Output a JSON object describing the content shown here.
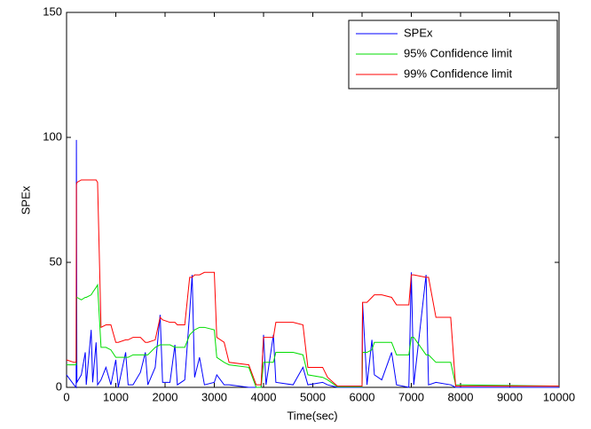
{
  "chart_data": {
    "type": "line",
    "xlabel": "Time(sec)",
    "ylabel": "SPEx",
    "x": [
      0,
      150,
      195,
      200,
      210,
      300,
      380,
      400,
      500,
      530,
      600,
      630,
      700,
      800,
      900,
      1000,
      1050,
      1200,
      1250,
      1350,
      1500,
      1600,
      1650,
      1800,
      1900,
      1950,
      2100,
      2200,
      2250,
      2400,
      2500,
      2550,
      2600,
      2700,
      2800,
      3000,
      3050,
      3200,
      3300,
      3700,
      3850,
      3950,
      4000,
      4050,
      4200,
      4250,
      4600,
      4800,
      4900,
      5200,
      5300,
      5500,
      6000,
      6010,
      6100,
      6200,
      6250,
      6400,
      6600,
      6700,
      6950,
      7000,
      7050,
      7300,
      7350,
      7500,
      7800,
      7900,
      10000
    ],
    "series": [
      {
        "name": "SPEx",
        "color": "#0000ff",
        "values": [
          5,
          1,
          0,
          99,
          2,
          5,
          14,
          1,
          23,
          2,
          18,
          1,
          3,
          8,
          1,
          11,
          0,
          14,
          1,
          1,
          6,
          14,
          1,
          8,
          29,
          2,
          2,
          17,
          1,
          3,
          30,
          45,
          4,
          12,
          1,
          2,
          5,
          1,
          1,
          0,
          0,
          0,
          21,
          1,
          21,
          2,
          1,
          8,
          1,
          2,
          1,
          0,
          0,
          34,
          1,
          19,
          5,
          3,
          14,
          1,
          0,
          46,
          1,
          45,
          1,
          2,
          1,
          0,
          0
        ]
      },
      {
        "name": "95% Confidence limit",
        "color": "#00dd00",
        "values": [
          9,
          9,
          9,
          36,
          36,
          35,
          36,
          36,
          37,
          38,
          40,
          41,
          16,
          16,
          15,
          12,
          12,
          12,
          12,
          13,
          13,
          13,
          13,
          16,
          17,
          17,
          17,
          16,
          16,
          16,
          21,
          22,
          23,
          24,
          24,
          23,
          12,
          10,
          9,
          8,
          0,
          0,
          10,
          10,
          10,
          14,
          14,
          13,
          5,
          4,
          3,
          0.2,
          0.2,
          14,
          14,
          15,
          18,
          18,
          18,
          13,
          13,
          20,
          20,
          13,
          13,
          10,
          10,
          1,
          0.5
        ]
      },
      {
        "name": "99% Confidence limit",
        "color": "#ff0000",
        "values": [
          11,
          10,
          10,
          81,
          82,
          83,
          83,
          83,
          83,
          83,
          83,
          82,
          24,
          25,
          25,
          18,
          18,
          19,
          19,
          20,
          20,
          18,
          18,
          19,
          28,
          27,
          26,
          26,
          25,
          25,
          44,
          44,
          45,
          45,
          46,
          46,
          20,
          18,
          10,
          9,
          1,
          1,
          20,
          20,
          20,
          26,
          26,
          25,
          8,
          8,
          4,
          0.5,
          0.5,
          34,
          34,
          36,
          37,
          37,
          36,
          33,
          33,
          45,
          45,
          44,
          44,
          28,
          28,
          0.5,
          0.5
        ]
      }
    ],
    "xlim": [
      0,
      10000
    ],
    "xticks": [
      0,
      1000,
      2000,
      3000,
      4000,
      5000,
      6000,
      7000,
      8000,
      9000,
      10000
    ],
    "ylim": [
      0,
      150
    ],
    "yticks": [
      0,
      50,
      100,
      150
    ],
    "legend": "upper right"
  }
}
